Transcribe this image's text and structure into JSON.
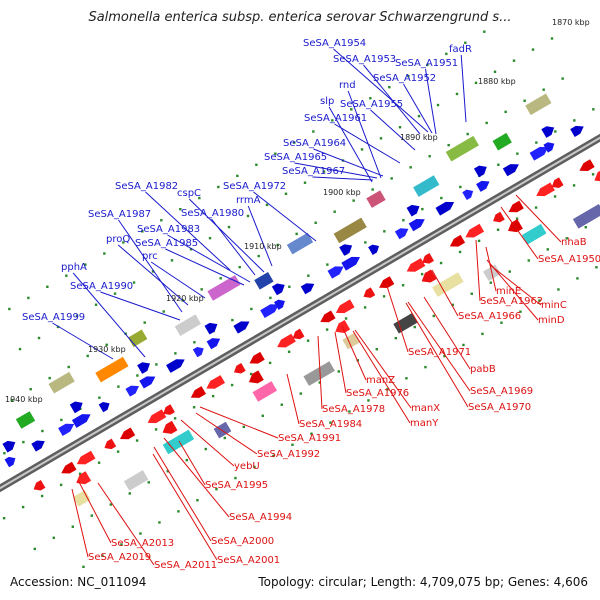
{
  "title": "Salmonella enterica subsp. enterica serovar Schwarzengrund s...",
  "footer": {
    "accession": "Accession: NC_011094",
    "topology": "Topology: circular; Length: 4,709,075 bp; Genes: 4,606"
  },
  "colors": {
    "backbone": "#7a7a7a",
    "forward_label": "#1a1acc",
    "reverse_label": "#dd1111",
    "forward_arrow": "#0000ee",
    "reverse_arrow": "#ee0000",
    "tick_marks": "#2a8a2a"
  },
  "ticks": [
    "1870 kbp",
    "1880 kbp",
    "1890 kbp",
    "1900 kbp",
    "1910 kbp",
    "1920 kbp",
    "1930 kbp",
    "1940 kbp"
  ],
  "forward_labels": [
    "SeSA_A1954",
    "fadR",
    "SeSA_A1953",
    "SeSA_A1951",
    "SeSA_A1952",
    "rnd",
    "slp",
    "SeSA_A1955",
    "SeSA_A1961",
    "SeSA_A1964",
    "SeSA_A1965",
    "SeSA_A1967",
    "SeSA_A1982",
    "SeSA_A1972",
    "cspC",
    "rrmA",
    "SeSA_A1980",
    "SeSA_A1987",
    "SeSA_A1983",
    "proQ",
    "SeSA_A1985",
    "prc",
    "pphA",
    "SeSA_A1990",
    "SeSA_A1999"
  ],
  "reverse_labels": [
    "nhaB",
    "SeSA_A1950",
    "minE",
    "SeSA_A1962",
    "minC",
    "minD",
    "SeSA_A1966",
    "SeSA_A1971",
    "pabB",
    "SeSA_A1969",
    "SeSA_A1970",
    "manZ",
    "SeSA_A1976",
    "SeSA_A1978",
    "manX",
    "manY",
    "SeSA_A1984",
    "SeSA_A1991",
    "SeSA_A1992",
    "yebU",
    "SeSA_A1995",
    "SeSA_A1994",
    "SeSA_A2000",
    "SeSA_A2001",
    "SeSA_A2013",
    "SeSA_A2019",
    "SeSA_A2011"
  ]
}
